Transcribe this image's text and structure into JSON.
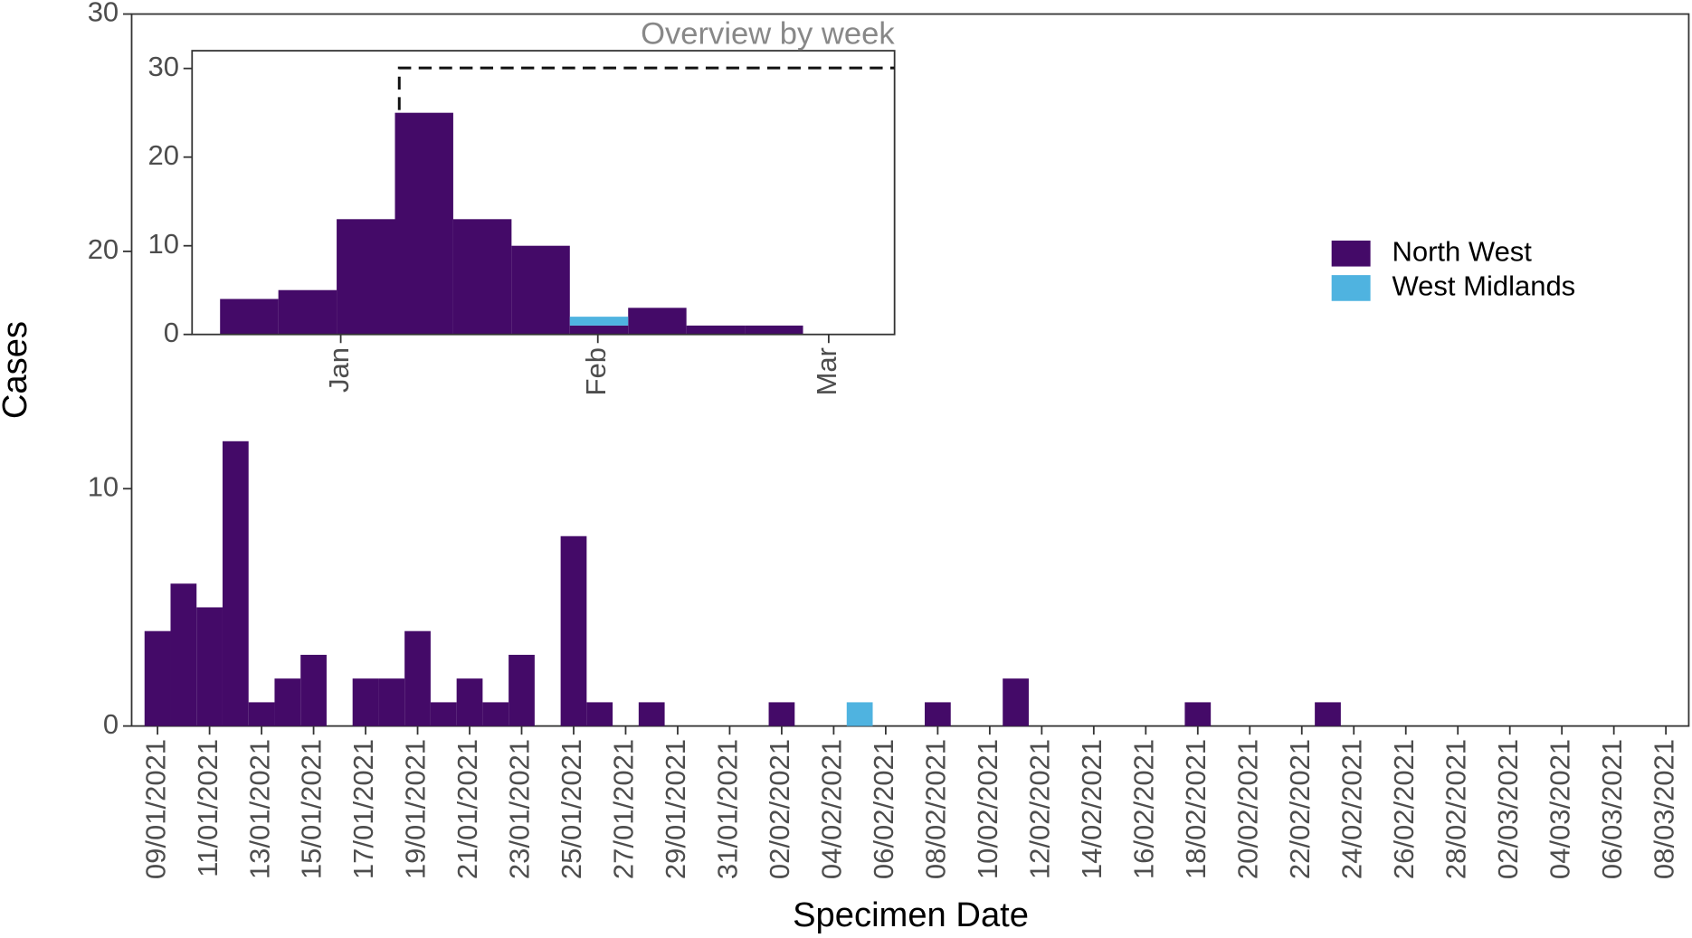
{
  "chart_data": [
    {
      "type": "bar",
      "stacked": true,
      "xlabel": "Specimen Date",
      "ylabel": "Cases",
      "categories": [
        "09/01/2021",
        null,
        "11/01/2021",
        null,
        "13/01/2021",
        null,
        "15/01/2021",
        null,
        "17/01/2021",
        null,
        "19/01/2021",
        null,
        "21/01/2021",
        null,
        "23/01/2021",
        null,
        "25/01/2021",
        null,
        "27/01/2021",
        null,
        "29/01/2021",
        null,
        "31/01/2021",
        null,
        "02/02/2021",
        null,
        "04/02/2021",
        null,
        "06/02/2021",
        null,
        "08/02/2021",
        null,
        "10/02/2021",
        null,
        "12/02/2021",
        null,
        "14/02/2021",
        null,
        "16/02/2021",
        null,
        "18/02/2021",
        null,
        "20/02/2021",
        null,
        "22/02/2021",
        null,
        "24/02/2021",
        null,
        "26/02/2021",
        null,
        "28/02/2021",
        null,
        "02/03/2021",
        null,
        "04/03/2021",
        null,
        "06/03/2021",
        null,
        "08/03/2021"
      ],
      "series": [
        {
          "name": "North West",
          "color": "#440a68",
          "values": [
            4,
            6,
            5,
            12,
            1,
            2,
            3,
            0,
            2,
            2,
            4,
            1,
            2,
            1,
            3,
            0,
            8,
            1,
            0,
            1,
            0,
            0,
            0,
            0,
            1,
            0,
            0,
            0,
            0,
            0,
            1,
            0,
            0,
            2,
            0,
            0,
            0,
            0,
            0,
            0,
            1,
            0,
            0,
            0,
            0,
            1,
            0,
            0,
            0,
            0,
            0,
            0,
            0,
            0,
            0,
            0,
            0,
            0,
            0
          ]
        },
        {
          "name": "West Midlands",
          "color": "#4fb3e0",
          "values": [
            0,
            0,
            0,
            0,
            0,
            0,
            0,
            0,
            0,
            0,
            0,
            0,
            0,
            0,
            0,
            0,
            0,
            0,
            0,
            0,
            0,
            0,
            0,
            0,
            0,
            0,
            0,
            1,
            0,
            0,
            0,
            0,
            0,
            0,
            0,
            0,
            0,
            0,
            0,
            0,
            0,
            0,
            0,
            0,
            0,
            0,
            0,
            0,
            0,
            0,
            0,
            0,
            0,
            0,
            0,
            0,
            0,
            0,
            0
          ]
        }
      ],
      "ylim": [
        0,
        30
      ],
      "yticks": [
        0,
        10,
        20,
        30
      ],
      "legend": "right"
    },
    {
      "type": "histogram",
      "stacked": true,
      "title": "Overview by week",
      "bins": [
        0,
        1,
        2,
        3,
        4,
        5,
        6,
        7,
        8,
        9,
        10
      ],
      "series": [
        {
          "name": "North West",
          "color": "#440a68",
          "values": [
            4,
            5,
            13,
            25,
            13,
            10,
            1,
            3,
            1,
            1
          ]
        },
        {
          "name": "West Midlands",
          "color": "#4fb3e0",
          "values": [
            0,
            0,
            0,
            0,
            0,
            0,
            1,
            0,
            0,
            0
          ]
        }
      ],
      "xlim": [
        -0.48,
        11.57
      ],
      "xticks": [
        {
          "value": 2.07,
          "label": "Jan"
        },
        {
          "value": 6.48,
          "label": "Feb"
        },
        {
          "value": 10.44,
          "label": "Mar"
        }
      ],
      "ylim": [
        0,
        32
      ],
      "yticks": [
        0,
        10,
        20,
        30
      ]
    }
  ]
}
